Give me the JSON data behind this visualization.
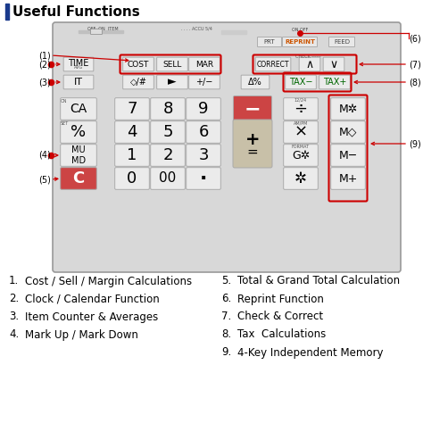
{
  "title": "Useful Functions",
  "title_bar_color": "#1a3a8c",
  "background_color": "#ffffff",
  "text_color": "#000000",
  "red_color": "#cc0000",
  "calc_bg": "#d8d8d8",
  "key_bg": "#ebebeb",
  "key_edge": "#aaaaaa",
  "legend_col1": [
    {
      "num": "1.",
      "text": "Cost / Sell / Margin Calculations"
    },
    {
      "num": "2.",
      "text": "Clock / Calendar Function"
    },
    {
      "num": "3.",
      "text": "Item Counter & Averages"
    },
    {
      "num": "4.",
      "text": "Mark Up / Mark Down"
    }
  ],
  "legend_col2": [
    {
      "num": "5.",
      "text": "Total & Grand Total Calculation"
    },
    {
      "num": "6.",
      "text": "Reprint Function"
    },
    {
      "num": "7.",
      "text": "Check & Correct"
    },
    {
      "num": "8.",
      "text": "Tax  Calculations"
    },
    {
      "num": "9.",
      "text": "4-Key Independent Memory"
    }
  ],
  "figsize": [
    4.74,
    4.74
  ],
  "dpi": 100
}
